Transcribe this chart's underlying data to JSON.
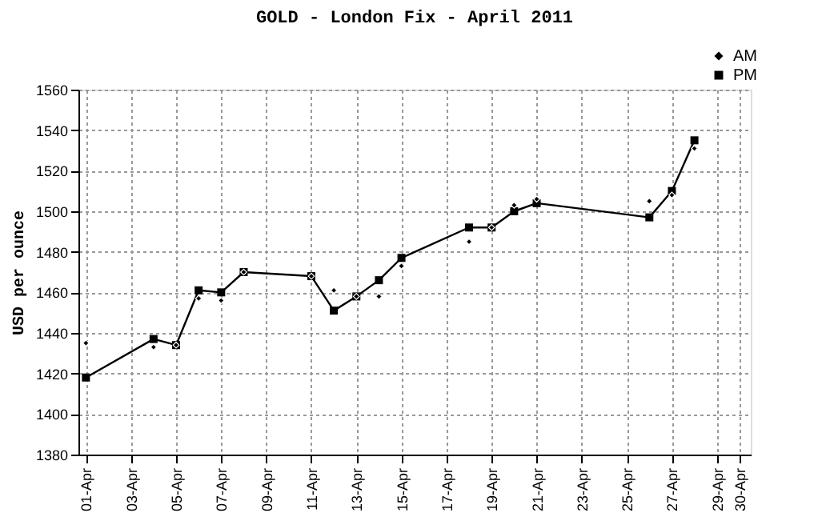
{
  "chart_data": {
    "type": "line",
    "title": "GOLD - London Fix - April 2011",
    "ylabel": "USD per ounce",
    "ylim": [
      1380,
      1560
    ],
    "yticks": [
      1380,
      1400,
      1420,
      1440,
      1460,
      1480,
      1500,
      1520,
      1540,
      1560
    ],
    "xlim": [
      "2011-03-31T16:00",
      "2011-04-30T12:00"
    ],
    "xticks": [
      {
        "value": "2011-04-01",
        "label": "01-Apr"
      },
      {
        "value": "2011-04-03",
        "label": "03-Apr"
      },
      {
        "value": "2011-04-05",
        "label": "05-Apr"
      },
      {
        "value": "2011-04-07",
        "label": "07-Apr"
      },
      {
        "value": "2011-04-09",
        "label": "09-Apr"
      },
      {
        "value": "2011-04-11",
        "label": "11-Apr"
      },
      {
        "value": "2011-04-13",
        "label": "13-Apr"
      },
      {
        "value": "2011-04-15",
        "label": "15-Apr"
      },
      {
        "value": "2011-04-17",
        "label": "17-Apr"
      },
      {
        "value": "2011-04-19",
        "label": "19-Apr"
      },
      {
        "value": "2011-04-21",
        "label": "21-Apr"
      },
      {
        "value": "2011-04-23",
        "label": "23-Apr"
      },
      {
        "value": "2011-04-25",
        "label": "25-Apr"
      },
      {
        "value": "2011-04-27",
        "label": "27-Apr"
      },
      {
        "value": "2011-04-29",
        "label": "29-Apr"
      },
      {
        "value": "2011-04-30",
        "label": "30-Apr"
      }
    ],
    "x": [
      "2011-04-01",
      "2011-04-04",
      "2011-04-05",
      "2011-04-06",
      "2011-04-07",
      "2011-04-08",
      "2011-04-11",
      "2011-04-12",
      "2011-04-13",
      "2011-04-14",
      "2011-04-15",
      "2011-04-18",
      "2011-04-19",
      "2011-04-20",
      "2011-04-21",
      "2011-04-26",
      "2011-04-27",
      "2011-04-28"
    ],
    "series": [
      {
        "name": "AM",
        "type": "scatter",
        "marker": "diamond",
        "color": "#000000",
        "values": [
          1435,
          1433,
          1434,
          1457,
          1456,
          1470,
          1468,
          1461,
          1458,
          1458,
          1473,
          1485,
          1492,
          1503,
          1506,
          1505,
          1508,
          1531
        ]
      },
      {
        "name": "PM",
        "marker": "square",
        "color": "#000000",
        "values": [
          1418,
          1437,
          1434,
          1461,
          1460,
          1470,
          1468,
          1451,
          1458,
          1466,
          1477,
          1492,
          1492,
          1500,
          1504,
          1497,
          1510,
          1535
        ]
      }
    ],
    "grid": true,
    "legend": "top right"
  }
}
